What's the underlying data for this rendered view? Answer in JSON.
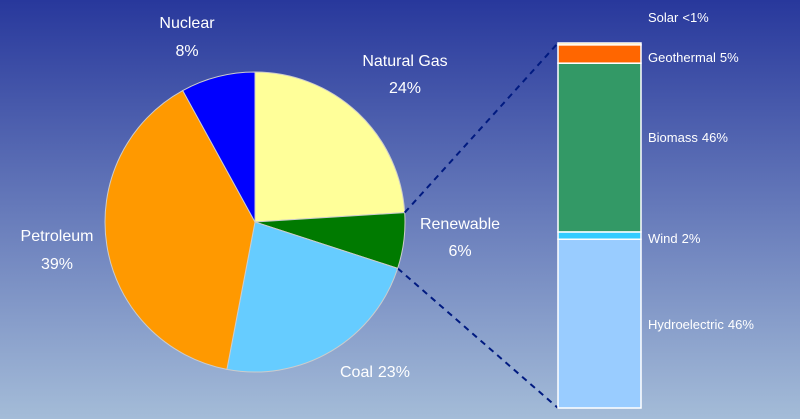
{
  "chart_data": [
    {
      "type": "pie",
      "categories": [
        "Natural Gas",
        "Renewable",
        "Coal",
        "Petroleum",
        "Nuclear"
      ],
      "values": [
        24,
        6,
        23,
        39,
        8
      ],
      "value_labels": [
        "24%",
        "6%",
        "23%",
        "39%",
        "8%"
      ],
      "colors": [
        "#ffff99",
        "#007a00",
        "#66ccff",
        "#ff9900",
        "#0000ff"
      ]
    },
    {
      "type": "bar",
      "stacked": true,
      "series": [
        {
          "name": "Solar",
          "color": "#ffcc33",
          "values": [
            0.5
          ],
          "value_labels": [
            "<1%"
          ]
        },
        {
          "name": "Geothermal",
          "color": "#ff6600",
          "values": [
            5
          ],
          "value_labels": [
            "5%"
          ]
        },
        {
          "name": "Biomass",
          "color": "#339966",
          "values": [
            46
          ],
          "value_labels": [
            "46%"
          ]
        },
        {
          "name": "Wind",
          "color": "#33ccff",
          "values": [
            2
          ],
          "value_labels": [
            "2%"
          ]
        },
        {
          "name": "Hydroelectric",
          "color": "#99ccff",
          "values": [
            46
          ],
          "value_labels": [
            "46%"
          ]
        }
      ]
    }
  ]
}
